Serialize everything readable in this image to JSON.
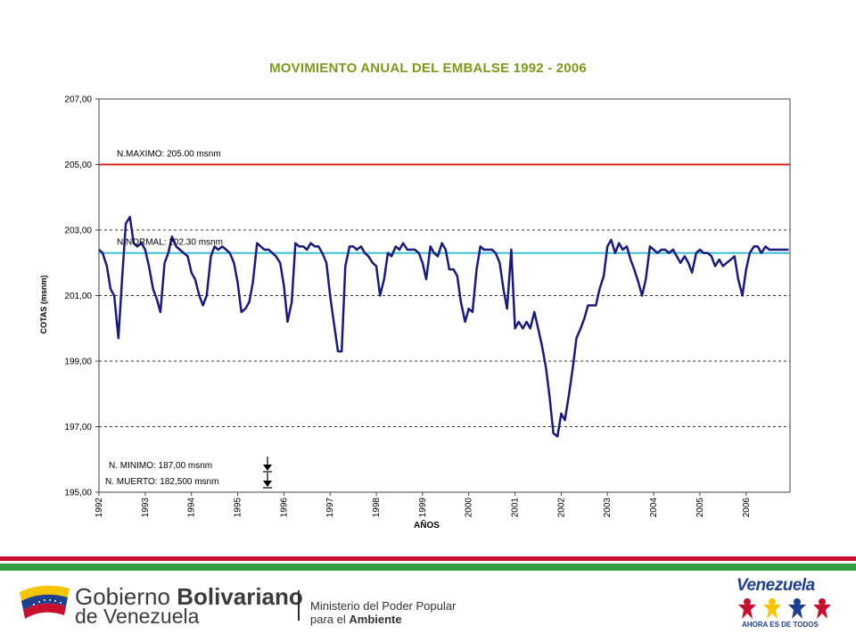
{
  "chart_data": {
    "type": "line",
    "title": "MOVIMIENTO ANUAL DEL EMBALSE 1992 - 2006",
    "xlabel": "AÑOS",
    "ylabel": "COTAS (msnm)",
    "xlim": [
      1992,
      2006.95
    ],
    "ylim": [
      195,
      207
    ],
    "yticks": [
      "207,00",
      "205,00",
      "203,00",
      "201,00",
      "199,00",
      "197,00",
      "195,00"
    ],
    "xticks": [
      "1992",
      "1993",
      "1994",
      "1995",
      "1996",
      "1997",
      "1998",
      "1999",
      "2000",
      "2001",
      "2002",
      "2003",
      "2004",
      "2005",
      "2006"
    ],
    "grid": "horizontal dashed",
    "colors": {
      "series": "#1a1a7a",
      "maximo": "#d42020",
      "normal": "#3cc0d8",
      "title": "#7a9a1a",
      "grid": "#333333"
    },
    "reference_lines": [
      {
        "label": "N.MAXIMO: 205.00 msnm",
        "value": 205.0
      },
      {
        "label": "N.NORMAL: 202.30 msnm",
        "value": 202.3
      }
    ],
    "annotations": [
      {
        "label": "N.  MINIMO:  187,00  msnm",
        "marker": "arrow-down-icon"
      },
      {
        "label": "N. MUERTO: 182,500 msnm",
        "marker": "arrow-down-icon"
      }
    ],
    "series": [
      {
        "x": [
          1992.0,
          1992.08,
          1992.17,
          1992.25,
          1992.33,
          1992.42,
          1992.5,
          1992.58,
          1992.67,
          1992.75,
          1992.83,
          1992.92,
          1993.0,
          1993.08,
          1993.17,
          1993.25,
          1993.33,
          1993.42,
          1993.5,
          1993.58,
          1993.67,
          1993.75,
          1993.83,
          1993.92,
          1994.0,
          1994.08,
          1994.17,
          1994.25,
          1994.33,
          1994.42,
          1994.5,
          1994.58,
          1994.67,
          1994.75,
          1994.83,
          1994.92,
          1995.0,
          1995.08,
          1995.17,
          1995.25,
          1995.33,
          1995.42,
          1995.5,
          1995.58,
          1995.67,
          1995.75,
          1995.83,
          1995.92,
          1996.0,
          1996.08,
          1996.17,
          1996.25,
          1996.33,
          1996.42,
          1996.5,
          1996.58,
          1996.67,
          1996.75,
          1996.83,
          1996.92,
          1997.0,
          1997.08,
          1997.17,
          1997.25,
          1997.33,
          1997.42,
          1997.5,
          1997.58,
          1997.67,
          1997.75,
          1997.83,
          1997.92,
          1998.0,
          1998.08,
          1998.17,
          1998.25,
          1998.33,
          1998.42,
          1998.5,
          1998.58,
          1998.67,
          1998.75,
          1998.83,
          1998.92,
          1999.0,
          1999.08,
          1999.17,
          1999.25,
          1999.33,
          1999.42,
          1999.5,
          1999.58,
          1999.67,
          1999.75,
          1999.83,
          1999.92,
          2000.0,
          2000.08,
          2000.17,
          2000.25,
          2000.33,
          2000.42,
          2000.5,
          2000.58,
          2000.67,
          2000.75,
          2000.83,
          2000.92,
          2001.0,
          2001.08,
          2001.17,
          2001.25,
          2001.33,
          2001.42,
          2001.5,
          2001.58,
          2001.67,
          2001.75,
          2001.83,
          2001.92,
          2002.0,
          2002.08,
          2002.17,
          2002.25,
          2002.33,
          2002.42,
          2002.5,
          2002.58,
          2002.67,
          2002.75,
          2002.83,
          2002.92,
          2003.0,
          2003.08,
          2003.17,
          2003.25,
          2003.33,
          2003.42,
          2003.5,
          2003.58,
          2003.67,
          2003.75,
          2003.83,
          2003.92,
          2004.0,
          2004.08,
          2004.17,
          2004.25,
          2004.33,
          2004.42,
          2004.5,
          2004.58,
          2004.67,
          2004.75,
          2004.83,
          2004.92,
          2005.0,
          2005.08,
          2005.17,
          2005.25,
          2005.33,
          2005.42,
          2005.5,
          2005.58,
          2005.67,
          2005.75,
          2005.83,
          2005.92,
          2006.0,
          2006.08,
          2006.17,
          2006.25,
          2006.33,
          2006.42,
          2006.5,
          2006.58,
          2006.67,
          2006.75,
          2006.83,
          2006.92
        ],
        "y": [
          202.4,
          202.3,
          201.9,
          201.2,
          201.0,
          199.7,
          201.5,
          203.2,
          203.4,
          202.6,
          202.5,
          202.6,
          202.4,
          201.9,
          201.2,
          200.9,
          200.5,
          202.0,
          202.3,
          202.8,
          202.5,
          202.4,
          202.3,
          202.2,
          201.7,
          201.5,
          201.0,
          200.7,
          201.0,
          202.2,
          202.5,
          202.4,
          202.5,
          202.4,
          202.3,
          202.0,
          201.4,
          200.5,
          200.6,
          200.8,
          201.4,
          202.6,
          202.5,
          202.4,
          202.4,
          202.3,
          202.2,
          202.0,
          201.3,
          200.2,
          200.8,
          202.6,
          202.5,
          202.5,
          202.4,
          202.6,
          202.5,
          202.5,
          202.3,
          202.0,
          201.0,
          200.2,
          199.3,
          199.3,
          201.9,
          202.5,
          202.5,
          202.4,
          202.5,
          202.3,
          202.2,
          202.0,
          201.9,
          201.0,
          201.5,
          202.3,
          202.2,
          202.5,
          202.4,
          202.6,
          202.4,
          202.4,
          202.4,
          202.3,
          202.0,
          201.5,
          202.5,
          202.3,
          202.2,
          202.6,
          202.4,
          201.8,
          201.8,
          201.6,
          200.8,
          200.2,
          200.6,
          200.5,
          201.8,
          202.5,
          202.4,
          202.4,
          202.4,
          202.3,
          202.0,
          201.2,
          200.6,
          202.4,
          200.0,
          200.2,
          200.0,
          200.2,
          200.0,
          200.5,
          200.0,
          199.5,
          198.8,
          197.9,
          196.8,
          196.7,
          197.4,
          197.2,
          198.0,
          198.8,
          199.7,
          200.0,
          200.3,
          200.7,
          200.7,
          200.7,
          201.2,
          201.6,
          202.5,
          202.7,
          202.3,
          202.6,
          202.4,
          202.5,
          202.1,
          201.8,
          201.4,
          201.0,
          201.5,
          202.5,
          202.4,
          202.3,
          202.4,
          202.4,
          202.3,
          202.4,
          202.2,
          202.0,
          202.2,
          202.0,
          201.7,
          202.3,
          202.4,
          202.3,
          202.3,
          202.2,
          201.9,
          202.1,
          201.9,
          202.0,
          202.1,
          202.2,
          201.5,
          201.0,
          201.8,
          202.3,
          202.5,
          202.5,
          202.3,
          202.5,
          202.4,
          202.4,
          202.4,
          202.4,
          202.4,
          202.4
        ]
      }
    ]
  },
  "footer": {
    "gov_line1_regular": "Gobierno ",
    "gov_line1_bold": "Bolivariano",
    "gov_line2": "de Venezuela",
    "ministry_line1": "Ministerio del Poder Popular",
    "ministry_line2_regular": "para el ",
    "ministry_line2_bold": "Ambiente",
    "brand": "Venezuela",
    "slogan": "AHORA ES DE TODOS",
    "stripe_colors": [
      "#c8102e",
      "#2e9e3e"
    ]
  }
}
